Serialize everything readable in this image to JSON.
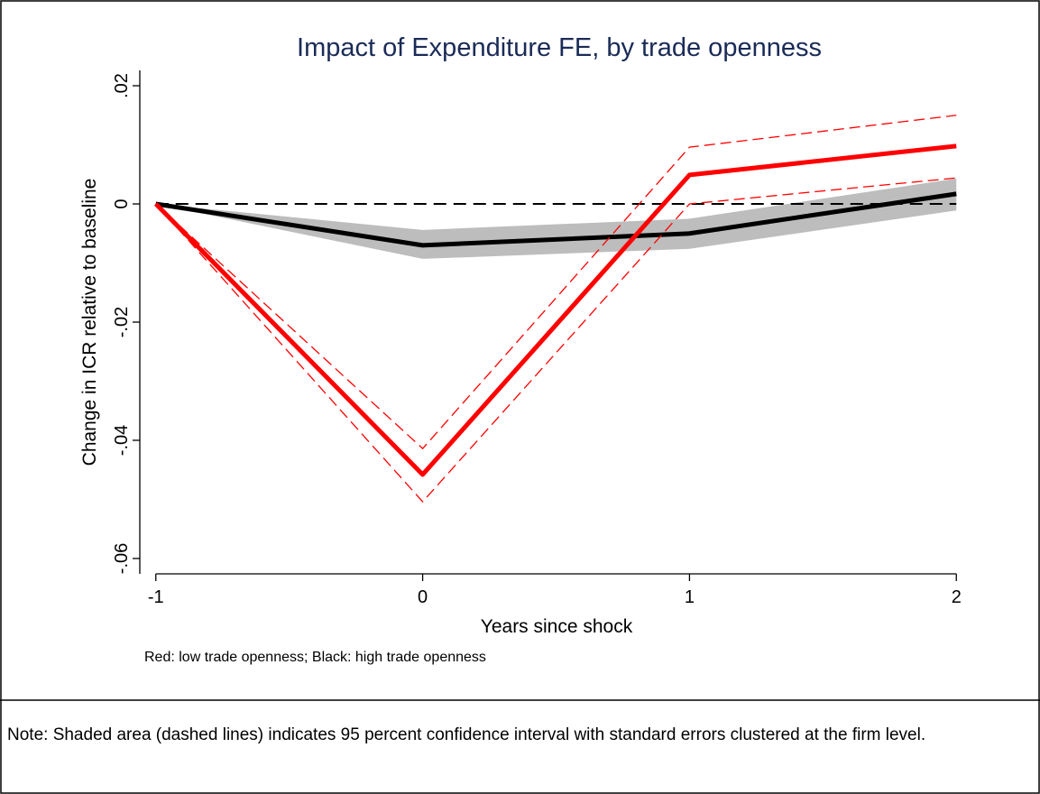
{
  "chart_data": {
    "type": "line",
    "title": "Impact of Expenditure FE, by trade openness",
    "x_label": "Years since shock",
    "y_label": "Change in ICR relative to baseline",
    "caption": "Red: low trade openness; Black: high trade openness",
    "x": [
      -1,
      0,
      1,
      2
    ],
    "series": [
      {
        "color": "#000000",
        "ci_style": "band",
        "band_color": "#bdbdbd",
        "values": [
          0,
          -0.007,
          -0.005,
          0.0017
        ],
        "lower": [
          0,
          -0.0093,
          -0.0076,
          -0.0011
        ],
        "upper": [
          0,
          -0.0044,
          -0.0025,
          0.0043
        ]
      },
      {
        "color": "#ff0000",
        "ci_style": "dashed",
        "values": [
          0,
          -0.0458,
          0.0049,
          0.0098
        ],
        "lower": [
          0,
          -0.0504,
          0,
          0.0044
        ],
        "upper": [
          0,
          -0.0414,
          0.0096,
          0.015
        ]
      }
    ],
    "reference_line": 0,
    "xlim": [
      -1.06,
      2.06
    ],
    "ylim": [
      -0.0626,
      0.0226
    ],
    "xticks": [
      -1,
      0,
      1,
      2
    ],
    "yticks": [
      {
        "value": 0.02,
        "label": ".02"
      },
      0,
      {
        "value": -0.02,
        "label": "-.02"
      },
      {
        "value": -0.04,
        "label": "-.04"
      },
      {
        "value": -0.06,
        "label": "-.06"
      }
    ]
  },
  "note": "Note: Shaded area (dashed lines) indicates 95 percent confidence interval with standard errors clustered at the firm level."
}
